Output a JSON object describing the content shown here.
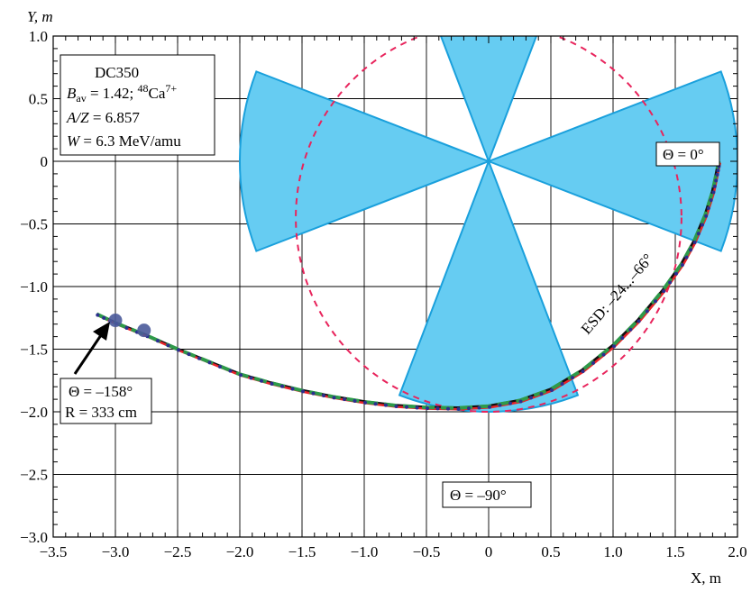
{
  "chart_data": {
    "type": "line",
    "title": "",
    "xlabel": "X, m",
    "ylabel": "Y, m",
    "xlim": [
      -3.5,
      2.0
    ],
    "ylim": [
      -3.0,
      1.0
    ],
    "x_ticks": [
      -3.5,
      -3.0,
      -2.5,
      -2.0,
      -1.5,
      -1.0,
      -0.5,
      0,
      0.5,
      1.0,
      1.5,
      2.0
    ],
    "y_ticks": [
      -3.0,
      -2.5,
      -2.0,
      -1.5,
      -1.0,
      -0.5,
      0,
      0.5,
      1.0
    ],
    "x_tick_labels": [
      "−3.5",
      "−3.0",
      "−2.5",
      "−2.0",
      "−1.5",
      "−1.0",
      "−0.5",
      "0",
      "0.5",
      "1.0",
      "1.5",
      "2.0"
    ],
    "y_tick_labels": [
      "−3.0",
      "−2.5",
      "−2.0",
      "−1.5",
      "−1.0",
      "−0.5",
      "0",
      "0.5",
      "1.0"
    ],
    "grid": true,
    "colors": {
      "sector_fill": "#66ccf2",
      "sector_edge": "#1aa0dc",
      "dashed_circle": "#e8245c",
      "trajectory_black": "#111111",
      "trajectory_red": "#e8232a",
      "trajectory_green": "#2e9a4a",
      "trajectory_dots": "#2b2f8f",
      "marker": "#4a5a9a"
    },
    "sectors": {
      "center": [
        0,
        0
      ],
      "outer_radius": 2.0,
      "half_angle_deg": 21,
      "center_angles_deg": [
        0,
        90,
        180,
        270
      ]
    },
    "dashed_circle": {
      "center": [
        0,
        -0.45
      ],
      "radius": 1.55
    },
    "trajectory": {
      "x": [
        -3.15,
        -3.0,
        -2.75,
        -2.5,
        -2.25,
        -2.0,
        -1.75,
        -1.5,
        -1.25,
        -1.0,
        -0.75,
        -0.5,
        -0.25,
        0.0,
        0.25,
        0.5,
        0.75,
        1.0,
        1.2,
        1.4,
        1.55,
        1.65,
        1.74,
        1.8,
        1.83,
        1.85
      ],
      "y": [
        -1.22,
        -1.29,
        -1.39,
        -1.5,
        -1.6,
        -1.7,
        -1.77,
        -1.83,
        -1.88,
        -1.92,
        -1.95,
        -1.965,
        -1.97,
        -1.955,
        -1.91,
        -1.82,
        -1.67,
        -1.47,
        -1.27,
        -1.03,
        -0.82,
        -0.64,
        -0.43,
        -0.24,
        -0.1,
        0.0
      ]
    },
    "dot_markers": [
      [
        -3.0,
        -1.27
      ],
      [
        -2.77,
        -1.35
      ]
    ],
    "annotations": {
      "info_box": {
        "line1": "DC350",
        "b_sym": "B",
        "b_sub": "av",
        "b_rest": " = 1.42; ",
        "iso_mass": "48",
        "iso_elem": "Ca",
        "iso_charge": "7+",
        "az_sym": "A/Z",
        "az_val": " = 6.857",
        "w_sym": "W",
        "w_val": " = 6.3 MeV/amu"
      },
      "theta0": "Θ = 0°",
      "theta158": "Θ = –158°",
      "radius": "R = 333 cm",
      "theta90": "Θ = –90°",
      "esd": "ESD: –24...–66°"
    }
  }
}
